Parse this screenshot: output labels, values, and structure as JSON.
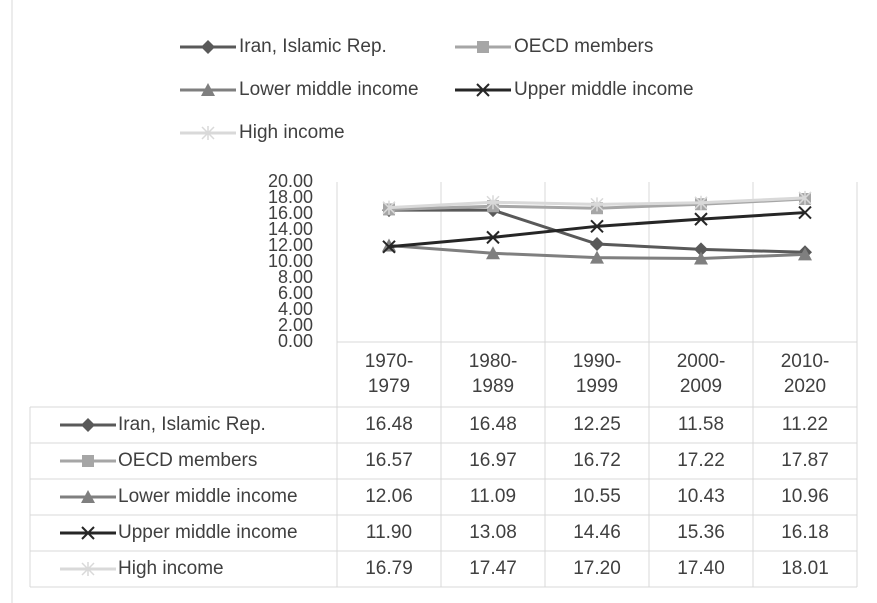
{
  "chart_data": {
    "type": "line",
    "categories": [
      "1970-1979",
      "1980-1989",
      "1990-1999",
      "2000-2009",
      "2010-2020"
    ],
    "ylim": [
      0,
      20
    ],
    "yticks": [
      {
        "value": 0,
        "label": "0.00"
      },
      {
        "value": 2,
        "label": "2.00"
      },
      {
        "value": 4,
        "label": "4.00"
      },
      {
        "value": 6,
        "label": "6.00"
      },
      {
        "value": 8,
        "label": "8.00"
      },
      {
        "value": 10,
        "label": "10.00"
      },
      {
        "value": 12,
        "label": "12.00"
      },
      {
        "value": 14,
        "label": "14.00"
      },
      {
        "value": 16,
        "label": "16.00"
      },
      {
        "value": 18,
        "label": "18.00"
      },
      {
        "value": 20,
        "label": "20.00"
      }
    ],
    "series": [
      {
        "name": "Iran, Islamic Rep.",
        "color": "#595959",
        "marker": "diamond",
        "values": [
          16.48,
          16.48,
          12.25,
          11.58,
          11.22
        ],
        "value_labels": [
          "16.48",
          "16.48",
          "12.25",
          "11.58",
          "11.22"
        ]
      },
      {
        "name": "OECD members",
        "color": "#a6a6a6",
        "marker": "square",
        "values": [
          16.57,
          16.97,
          16.72,
          17.22,
          17.87
        ],
        "value_labels": [
          "16.57",
          "16.97",
          "16.72",
          "17.22",
          "17.87"
        ]
      },
      {
        "name": "Lower middle income",
        "color": "#7f7f7f",
        "marker": "triangle",
        "values": [
          12.06,
          11.09,
          10.55,
          10.43,
          10.96
        ],
        "value_labels": [
          "12.06",
          "11.09",
          "10.55",
          "10.43",
          "10.96"
        ]
      },
      {
        "name": "Upper middle income",
        "color": "#262626",
        "marker": "x",
        "values": [
          11.9,
          13.08,
          14.46,
          15.36,
          16.18
        ],
        "value_labels": [
          "11.90",
          "13.08",
          "14.46",
          "15.36",
          "16.18"
        ]
      },
      {
        "name": "High income",
        "color": "#d9d9d9",
        "marker": "star",
        "values": [
          16.79,
          17.47,
          17.2,
          17.4,
          18.01
        ],
        "value_labels": [
          "16.79",
          "17.47",
          "17.20",
          "17.40",
          "18.01"
        ]
      }
    ]
  }
}
